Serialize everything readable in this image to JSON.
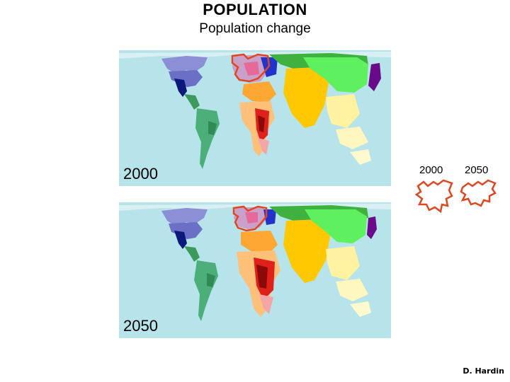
{
  "header": {
    "title": "POPULATION",
    "subtitle": "Population change"
  },
  "maps": [
    {
      "year_label": "2000"
    },
    {
      "year_label": "2050"
    }
  ],
  "legend": {
    "label_2000": "2000",
    "label_2050": "2050",
    "outline_color": "#e0461f"
  },
  "footer": {
    "credit": "D. Hardin"
  },
  "colors": {
    "ocean": "#b7e3ea",
    "north_america": "#6b6fc6",
    "usa_south": "#0b1a7a",
    "latin_america": "#4caf7a",
    "europe": "#c9a0c9",
    "russia": "#3fb13f",
    "china": "#5ef05e",
    "india": "#ffc800",
    "middle_east": "#ffa733",
    "africa": "#f4a6a6",
    "japan": "#6a0a8a",
    "southeast_asia": "#fff2a0"
  }
}
